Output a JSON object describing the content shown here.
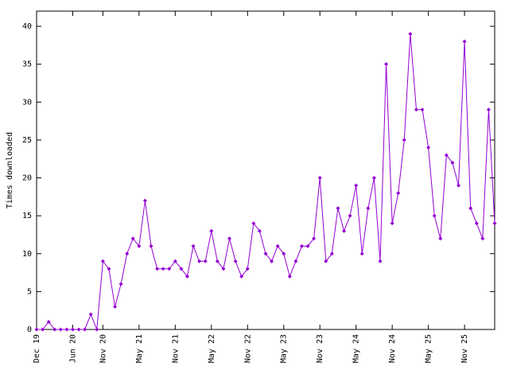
{
  "chart_data": {
    "type": "line",
    "y_label": "Times downloaded",
    "categories": [
      "Dec 19",
      null,
      null,
      null,
      null,
      null,
      "Jun 20",
      null,
      null,
      null,
      null,
      "Nov 20",
      null,
      null,
      null,
      null,
      null,
      "May 21",
      null,
      null,
      null,
      null,
      null,
      "Nov 21",
      null,
      null,
      null,
      null,
      null,
      "May 22",
      null,
      null,
      null,
      null,
      null,
      "Nov 22",
      null,
      null,
      null,
      null,
      null,
      "May 23",
      null,
      null,
      null,
      null,
      null,
      "Nov 23",
      null,
      null,
      null,
      null,
      null,
      "May 24",
      null,
      null,
      null,
      null,
      null,
      "Nov 24",
      null,
      null,
      null,
      null,
      null,
      "May 25",
      null,
      null,
      null,
      null,
      null,
      "Nov 25",
      null,
      null,
      null,
      null,
      null
    ],
    "series": [
      {
        "color": "#9400d3",
        "values": [
          0,
          0,
          1,
          0,
          0,
          0,
          0,
          0,
          0,
          2,
          0,
          9,
          8,
          3,
          6,
          10,
          12,
          11,
          17,
          11,
          8,
          8,
          8,
          9,
          8,
          7,
          11,
          9,
          9,
          13,
          9,
          8,
          12,
          9,
          7,
          8,
          14,
          13,
          10,
          9,
          11,
          10,
          7,
          9,
          11,
          11,
          12,
          20,
          9,
          10,
          16,
          13,
          15,
          19,
          10,
          16,
          20,
          9,
          35,
          14,
          18,
          25,
          39,
          29,
          29,
          24,
          15,
          12,
          23,
          22,
          19,
          38,
          16,
          14,
          12,
          29,
          14
        ]
      }
    ],
    "ylim": [
      0,
      42
    ],
    "yticks": [
      0,
      5,
      10,
      15,
      20,
      25,
      30,
      35,
      40
    ]
  }
}
